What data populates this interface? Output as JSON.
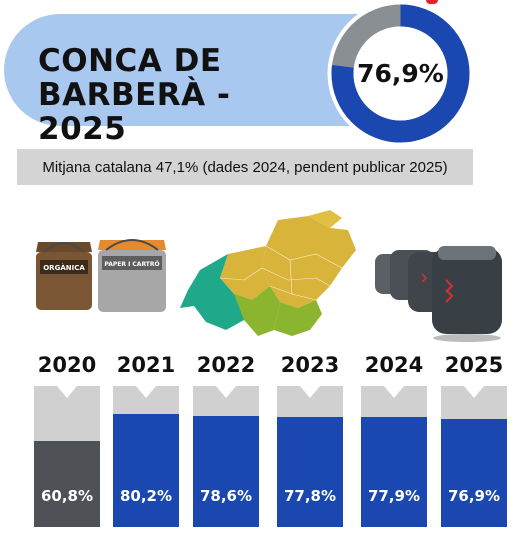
{
  "header": {
    "title": "CONCA DE\nBARBERÀ - 2025",
    "percentage_label": "76,9%",
    "percentage_value": 76.9,
    "colors": {
      "accent": "#1a48b0",
      "track": "#8a8f93",
      "pill": "#a9c8ef"
    }
  },
  "average_note": "Mitjana catalana 47,1% (dades 2024, pendent publicar 2025)",
  "bins": {
    "organic_label": "ORGÀNICA",
    "paper_label": "PAPER I CARTRÓ"
  },
  "chart_data": {
    "type": "bar",
    "categories": [
      "2020",
      "2021",
      "2022",
      "2023",
      "2024",
      "2025"
    ],
    "values": [
      60.8,
      80.2,
      78.6,
      77.8,
      77.9,
      76.9
    ],
    "value_labels": [
      "60,8%",
      "80,2%",
      "78,6%",
      "77,8%",
      "77,9%",
      "76,9%"
    ],
    "ylim": [
      0,
      100
    ],
    "colors": [
      "#4e5256",
      "#1a48b0",
      "#1a48b0",
      "#1a48b0",
      "#1a48b0",
      "#1a48b0"
    ],
    "title": "",
    "xlabel": "",
    "ylabel": ""
  }
}
